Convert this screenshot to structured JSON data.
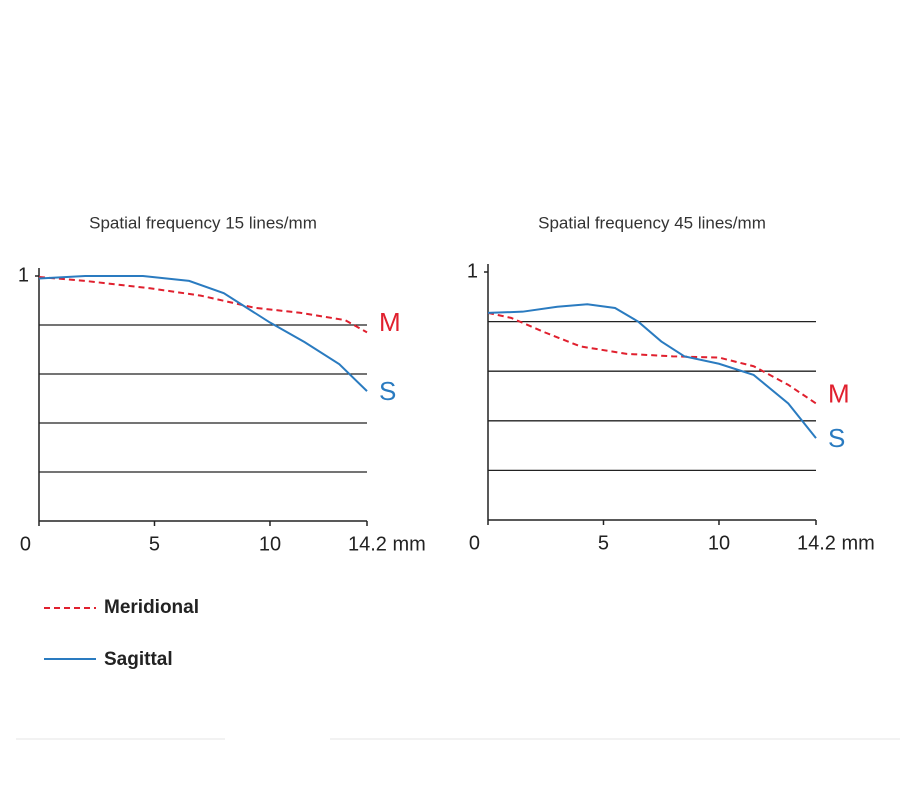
{
  "chart_data": [
    {
      "type": "line",
      "title": "Spatial frequency 15 lines/mm",
      "xlim": [
        0,
        14.2
      ],
      "ylim": [
        0,
        1
      ],
      "xticks": [
        0,
        5,
        10,
        {
          "value": 14.2,
          "label": "14.2 mm"
        }
      ],
      "yticks": [
        1
      ],
      "grid_lines": [
        0.2,
        0.4,
        0.6,
        0.8
      ],
      "series": [
        {
          "name": "Meridional",
          "end_label": "M",
          "color": "#e0202e",
          "dash": true,
          "x": [
            0,
            2,
            4.8,
            7,
            9.35,
            11.3,
            13.25,
            14.2
          ],
          "values": [
            0.996,
            0.98,
            0.95,
            0.92,
            0.87,
            0.85,
            0.82,
            0.77
          ]
        },
        {
          "name": "Sagittal",
          "end_label": "S",
          "color": "#2a7bc0",
          "dash": false,
          "x": [
            0,
            2,
            4.5,
            6.5,
            8,
            9,
            10,
            11.5,
            13,
            14.2
          ],
          "values": [
            0.99,
            1.0,
            1.0,
            0.98,
            0.93,
            0.87,
            0.81,
            0.73,
            0.64,
            0.53
          ]
        }
      ]
    },
    {
      "type": "line",
      "title": "Spatial frequency 45 lines/mm",
      "xlim": [
        0,
        14.2
      ],
      "ylim": [
        0,
        1
      ],
      "xticks": [
        0,
        5,
        10,
        {
          "value": 14.2,
          "label": "14.2 mm"
        }
      ],
      "yticks": [
        1
      ],
      "grid_lines": [
        0.2,
        0.4,
        0.6,
        0.8
      ],
      "series": [
        {
          "end_label": "M",
          "color": "#e0202e",
          "dash": true,
          "x": [
            0,
            1,
            2.5,
            4,
            6,
            8,
            10,
            11.5,
            13,
            14.2
          ],
          "values": [
            0.835,
            0.815,
            0.755,
            0.7,
            0.67,
            0.66,
            0.655,
            0.62,
            0.545,
            0.47
          ]
        },
        {
          "end_label": "S",
          "color": "#2a7bc0",
          "dash": false,
          "x": [
            0,
            1.5,
            3,
            4.3,
            5.5,
            6.5,
            7.5,
            8.5,
            10,
            11.5,
            13,
            14.2
          ],
          "values": [
            0.835,
            0.84,
            0.86,
            0.87,
            0.855,
            0.8,
            0.72,
            0.66,
            0.63,
            0.585,
            0.47,
            0.33
          ]
        }
      ]
    }
  ]
}
